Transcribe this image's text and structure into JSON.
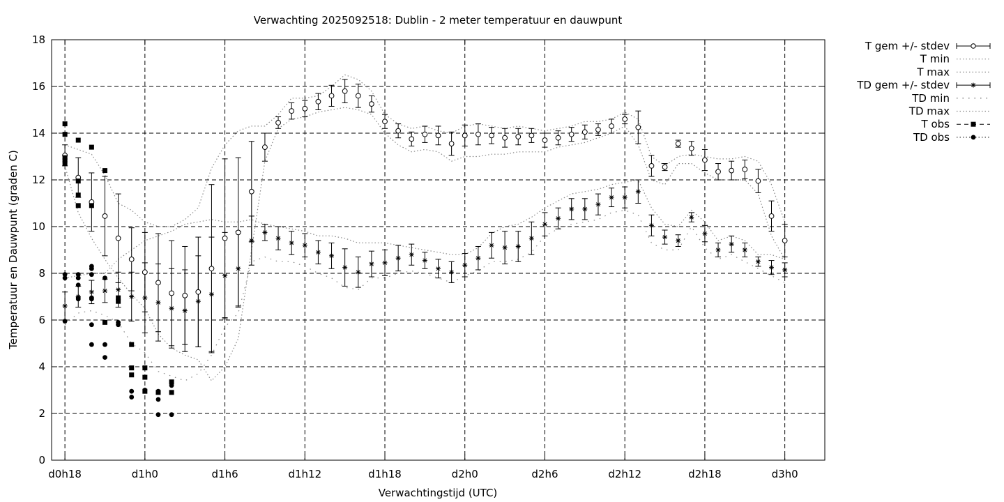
{
  "chart_data": {
    "type": "line",
    "title": "Verwachting 2025092518: Dublin - 2 meter temperatuur en dauwpunt",
    "xlabel": "Verwachtingstijd (UTC)",
    "ylabel": "Temperatuur en Dauwpunt (graden C)",
    "x_unit": "forecast hour from d0h0",
    "xlim": [
      17,
      75
    ],
    "ylim": [
      0,
      18
    ],
    "y_ticks": [
      0,
      2,
      4,
      6,
      8,
      10,
      12,
      14,
      16,
      18
    ],
    "x_ticks": [
      {
        "x": 18,
        "label": "d0h18"
      },
      {
        "x": 24,
        "label": "d1h0"
      },
      {
        "x": 30,
        "label": "d1h6"
      },
      {
        "x": 36,
        "label": "d1h12"
      },
      {
        "x": 42,
        "label": "d1h18"
      },
      {
        "x": 48,
        "label": "d2h0"
      },
      {
        "x": 54,
        "label": "d2h6"
      },
      {
        "x": 60,
        "label": "d2h12"
      },
      {
        "x": 66,
        "label": "d2h18"
      },
      {
        "x": 72,
        "label": "d3h0"
      }
    ],
    "grid": true,
    "legend_position": "outside-right",
    "legend": [
      {
        "label": "T gem +/- stdev",
        "style": "circle-errorbar"
      },
      {
        "label": "T min",
        "style": "dotted"
      },
      {
        "label": "T max",
        "style": "dotted"
      },
      {
        "label": "TD gem +/- stdev",
        "style": "star-errorbar"
      },
      {
        "label": "TD min",
        "style": "dotted-sparse"
      },
      {
        "label": "TD max",
        "style": "dotted"
      },
      {
        "label": "T obs",
        "style": "square-dashed"
      },
      {
        "label": "TD obs",
        "style": "dot-dotted"
      }
    ],
    "series": [
      {
        "name": "T gem +/- stdev",
        "marker": "circle",
        "x": [
          18,
          19,
          20,
          21,
          22,
          23,
          24,
          25,
          26,
          27,
          28,
          29,
          30,
          31,
          32,
          33,
          34,
          35,
          36,
          37,
          38,
          39,
          40,
          41,
          42,
          43,
          44,
          45,
          46,
          47,
          48,
          49,
          50,
          51,
          52,
          53,
          54,
          55,
          56,
          57,
          58,
          59,
          60,
          61,
          62,
          63,
          64,
          65,
          66,
          67,
          68,
          69,
          70,
          71,
          72
        ],
        "y": [
          13.05,
          12.1,
          11.05,
          10.45,
          9.5,
          8.6,
          8.05,
          7.6,
          7.15,
          7.05,
          7.2,
          8.2,
          9.5,
          9.75,
          11.5,
          13.4,
          14.45,
          14.95,
          15.05,
          15.35,
          15.6,
          15.8,
          15.6,
          15.25,
          14.5,
          14.1,
          13.75,
          13.95,
          13.9,
          13.55,
          13.9,
          13.95,
          13.9,
          13.8,
          13.85,
          13.9,
          13.7,
          13.8,
          13.95,
          14.05,
          14.15,
          14.3,
          14.6,
          14.25,
          12.6,
          12.55,
          13.55,
          13.35,
          12.85,
          12.35,
          12.4,
          12.45,
          11.95,
          10.45,
          9.4
        ],
        "err": [
          0.45,
          0.85,
          1.25,
          1.7,
          1.9,
          1.35,
          1.7,
          2.1,
          2.25,
          2.1,
          2.35,
          3.6,
          3.4,
          3.2,
          2.15,
          0.6,
          0.25,
          0.35,
          0.35,
          0.35,
          0.45,
          0.5,
          0.5,
          0.35,
          0.3,
          0.3,
          0.3,
          0.35,
          0.4,
          0.5,
          0.45,
          0.45,
          0.35,
          0.4,
          0.35,
          0.3,
          0.3,
          0.3,
          0.3,
          0.3,
          0.25,
          0.3,
          0.2,
          0.7,
          0.45,
          0.15,
          0.15,
          0.3,
          0.45,
          0.35,
          0.4,
          0.4,
          0.5,
          0.65,
          0.7
        ]
      },
      {
        "name": "T min",
        "x": [
          18,
          19,
          20,
          21,
          22,
          23,
          24,
          25,
          26,
          27,
          28,
          29,
          30,
          31,
          32,
          33,
          34,
          35,
          36,
          37,
          38,
          39,
          40,
          41,
          42,
          43,
          44,
          45,
          46,
          47,
          48,
          49,
          50,
          51,
          52,
          53,
          54,
          55,
          56,
          57,
          58,
          59,
          60,
          61,
          62,
          63,
          64,
          65,
          66,
          67,
          68,
          69,
          70,
          71,
          72
        ],
        "y": [
          12.6,
          10.6,
          9.5,
          8.6,
          7.8,
          7.1,
          6.5,
          5.4,
          4.8,
          4.5,
          4.3,
          3.4,
          4.0,
          5.2,
          9.0,
          12.8,
          14.2,
          14.6,
          14.7,
          14.9,
          15.0,
          15.1,
          15.0,
          14.8,
          14.0,
          13.5,
          13.2,
          13.3,
          13.2,
          12.8,
          13.0,
          13.0,
          13.1,
          13.1,
          13.2,
          13.2,
          13.2,
          13.4,
          13.5,
          13.6,
          13.8,
          14.0,
          14.3,
          13.5,
          12.0,
          11.8,
          12.7,
          12.7,
          12.3,
          12.0,
          12.0,
          12.0,
          11.4,
          9.6,
          8.6
        ]
      },
      {
        "name": "T max",
        "x": [
          18,
          19,
          20,
          21,
          22,
          23,
          24,
          25,
          26,
          27,
          28,
          29,
          30,
          31,
          32,
          33,
          34,
          35,
          36,
          37,
          38,
          39,
          40,
          41,
          42,
          43,
          44,
          45,
          46,
          47,
          48,
          49,
          50,
          51,
          52,
          53,
          54,
          55,
          56,
          57,
          58,
          59,
          60,
          61,
          62,
          63,
          64,
          65,
          66,
          67,
          68,
          69,
          70,
          71,
          72
        ],
        "y": [
          13.5,
          13.3,
          13.1,
          12.2,
          11.0,
          10.7,
          10.2,
          10.0,
          10.0,
          10.3,
          10.8,
          12.5,
          13.5,
          14.1,
          14.3,
          14.3,
          14.8,
          15.5,
          15.5,
          15.6,
          16.0,
          16.5,
          16.3,
          15.8,
          14.8,
          14.4,
          14.2,
          14.3,
          14.1,
          14.0,
          14.3,
          14.4,
          14.3,
          14.2,
          14.3,
          14.2,
          14.1,
          14.2,
          14.3,
          14.5,
          14.5,
          14.6,
          14.9,
          14.6,
          13.0,
          12.6,
          13.0,
          13.1,
          13.0,
          12.9,
          12.9,
          13.0,
          12.8,
          11.8,
          10.2
        ]
      },
      {
        "name": "TD gem +/- stdev",
        "marker": "star",
        "x": [
          18,
          19,
          20,
          21,
          22,
          23,
          24,
          25,
          26,
          27,
          28,
          29,
          30,
          31,
          32,
          33,
          34,
          35,
          36,
          37,
          38,
          39,
          40,
          41,
          42,
          43,
          44,
          45,
          46,
          47,
          48,
          49,
          50,
          51,
          52,
          53,
          54,
          55,
          56,
          57,
          58,
          59,
          60,
          61,
          62,
          63,
          64,
          65,
          66,
          67,
          68,
          69,
          70,
          71,
          72
        ],
        "y": [
          6.6,
          7.0,
          7.2,
          7.25,
          7.3,
          7.0,
          6.95,
          6.75,
          6.5,
          6.4,
          6.8,
          7.1,
          7.9,
          8.2,
          9.4,
          9.75,
          9.5,
          9.3,
          9.2,
          8.9,
          8.75,
          8.25,
          8.05,
          8.4,
          8.45,
          8.65,
          8.8,
          8.55,
          8.2,
          8.05,
          8.35,
          8.65,
          9.2,
          9.1,
          9.15,
          9.5,
          10.1,
          10.35,
          10.75,
          10.75,
          10.95,
          11.25,
          11.25,
          11.5,
          10.05,
          9.55,
          9.4,
          10.4,
          9.7,
          9.0,
          9.25,
          9.0,
          8.5,
          8.25,
          8.15
        ],
        "err": [
          0.6,
          0.45,
          0.5,
          0.5,
          0.75,
          1.05,
          1.5,
          1.65,
          1.7,
          1.75,
          1.95,
          2.45,
          1.85,
          1.6,
          1.05,
          0.35,
          0.5,
          0.5,
          0.5,
          0.5,
          0.55,
          0.8,
          0.65,
          0.55,
          0.55,
          0.55,
          0.45,
          0.35,
          0.4,
          0.45,
          0.5,
          0.5,
          0.55,
          0.7,
          0.65,
          0.7,
          0.5,
          0.45,
          0.45,
          0.45,
          0.45,
          0.4,
          0.45,
          0.5,
          0.45,
          0.3,
          0.25,
          0.2,
          0.35,
          0.3,
          0.35,
          0.3,
          0.2,
          0.3,
          0.3
        ]
      },
      {
        "name": "TD min",
        "x": [
          18,
          19,
          20,
          21,
          22,
          23,
          24,
          25,
          26,
          27,
          28,
          29,
          30,
          31,
          32,
          33,
          34,
          35,
          36,
          37,
          38,
          39,
          40,
          41,
          42,
          43,
          44,
          45,
          46,
          47,
          48,
          49,
          50,
          51,
          52,
          53,
          54,
          55,
          56,
          57,
          58,
          59,
          60,
          61,
          62,
          63,
          64,
          65,
          66,
          67,
          68,
          69,
          70,
          71,
          72
        ],
        "y": [
          5.8,
          6.3,
          6.4,
          6.2,
          5.9,
          5.0,
          4.6,
          3.8,
          3.6,
          3.4,
          3.7,
          4.5,
          5.7,
          6.3,
          8.5,
          8.7,
          8.5,
          8.5,
          8.3,
          8.0,
          7.8,
          7.4,
          7.3,
          7.8,
          7.8,
          8.0,
          8.1,
          8.0,
          7.8,
          7.6,
          7.9,
          8.1,
          8.5,
          8.5,
          8.6,
          8.9,
          9.6,
          9.9,
          10.1,
          10.2,
          10.3,
          10.6,
          10.7,
          10.5,
          9.3,
          9.0,
          9.0,
          10.0,
          9.1,
          8.6,
          8.8,
          8.5,
          8.2,
          7.9,
          7.6
        ]
      },
      {
        "name": "TD max",
        "x": [
          18,
          19,
          20,
          21,
          22,
          23,
          24,
          25,
          26,
          27,
          28,
          29,
          30,
          31,
          32,
          33,
          34,
          35,
          36,
          37,
          38,
          39,
          40,
          41,
          42,
          43,
          44,
          45,
          46,
          47,
          48,
          49,
          50,
          51,
          52,
          53,
          54,
          55,
          56,
          57,
          58,
          59,
          60,
          61,
          62,
          63,
          64,
          65,
          66,
          67,
          68,
          69,
          70,
          71,
          72
        ],
        "y": [
          7.8,
          7.9,
          8.0,
          8.0,
          8.6,
          9.0,
          9.4,
          9.6,
          9.8,
          10.1,
          10.2,
          10.3,
          10.2,
          10.2,
          10.3,
          10.1,
          10.0,
          9.9,
          9.8,
          9.6,
          9.6,
          9.5,
          9.3,
          9.3,
          9.3,
          9.2,
          9.1,
          9.0,
          8.9,
          8.8,
          8.8,
          9.1,
          9.7,
          10.0,
          10.1,
          10.4,
          10.8,
          11.1,
          11.4,
          11.5,
          11.6,
          11.8,
          11.9,
          12.0,
          10.8,
          10.1,
          10.0,
          10.7,
          10.2,
          9.4,
          9.6,
          9.4,
          8.8,
          8.8,
          8.6
        ]
      },
      {
        "name": "T obs",
        "marker": "square",
        "points": [
          [
            18,
            14.4
          ],
          [
            18,
            13.95
          ],
          [
            18,
            12.95
          ],
          [
            18,
            12.85
          ],
          [
            18,
            12.7
          ],
          [
            19,
            13.7
          ],
          [
            19,
            11.95
          ],
          [
            19,
            11.35
          ],
          [
            19,
            10.9
          ],
          [
            20,
            13.4
          ],
          [
            20,
            10.9
          ],
          [
            21,
            12.4
          ],
          [
            21,
            5.9
          ],
          [
            22,
            6.95
          ],
          [
            22,
            6.8
          ],
          [
            23,
            4.95
          ],
          [
            23,
            3.95
          ],
          [
            23,
            3.65
          ],
          [
            24,
            3.95
          ],
          [
            24,
            3.55
          ],
          [
            24,
            2.95
          ],
          [
            25,
            2.9
          ],
          [
            26,
            3.35
          ],
          [
            26,
            2.9
          ]
        ]
      },
      {
        "name": "TD obs",
        "marker": "dot",
        "points": [
          [
            18,
            7.95
          ],
          [
            18,
            7.8
          ],
          [
            18,
            5.95
          ],
          [
            19,
            7.95
          ],
          [
            19,
            7.8
          ],
          [
            19,
            7.5
          ],
          [
            19,
            6.95
          ],
          [
            19,
            6.9
          ],
          [
            20,
            8.3
          ],
          [
            20,
            8.2
          ],
          [
            20,
            7.95
          ],
          [
            20,
            6.95
          ],
          [
            20,
            6.9
          ],
          [
            20,
            5.8
          ],
          [
            20,
            4.95
          ],
          [
            21,
            7.8
          ],
          [
            21,
            4.95
          ],
          [
            21,
            4.4
          ],
          [
            22,
            5.9
          ],
          [
            22,
            5.8
          ],
          [
            23,
            2.95
          ],
          [
            23,
            2.7
          ],
          [
            24,
            3.0
          ],
          [
            25,
            2.95
          ],
          [
            25,
            2.6
          ],
          [
            25,
            1.95
          ],
          [
            26,
            3.2
          ],
          [
            26,
            1.95
          ]
        ]
      }
    ]
  }
}
